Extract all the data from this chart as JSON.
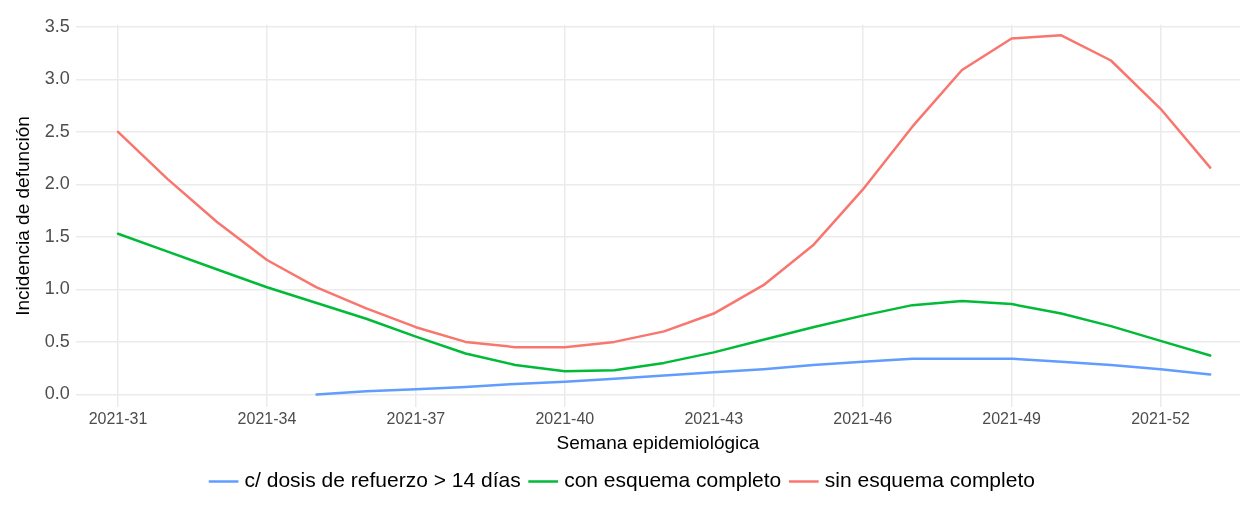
{
  "chart_data": {
    "type": "line",
    "xlabel": "Semana epidemiológica",
    "ylabel": "Incidencia de defunción",
    "categories": [
      "2021-31",
      null,
      null,
      "2021-34",
      null,
      null,
      "2021-37",
      null,
      null,
      "2021-40",
      null,
      null,
      "2021-43",
      null,
      null,
      "2021-46",
      null,
      null,
      "2021-49",
      null,
      null,
      "2021-52",
      null
    ],
    "ylim": [
      -0.12,
      3.52
    ],
    "yticks": [
      {
        "value": 0,
        "label": "0.0"
      },
      {
        "value": 0.5,
        "label": "0.5"
      },
      {
        "value": 1,
        "label": "1.0"
      },
      {
        "value": 1.5,
        "label": "1.5"
      },
      {
        "value": 2,
        "label": "2.0"
      },
      {
        "value": 2.5,
        "label": "2.5"
      },
      {
        "value": 3,
        "label": "3.0"
      },
      {
        "value": 3.5,
        "label": "3.5"
      }
    ],
    "series": [
      {
        "name": "c/ dosis de refuerzo > 14 días",
        "color": "#619cff",
        "values": [
          null,
          null,
          null,
          null,
          0.0,
          0.03,
          0.05,
          0.07,
          0.1,
          0.12,
          0.15,
          0.18,
          0.21,
          0.24,
          0.28,
          0.31,
          0.34,
          0.34,
          0.34,
          0.31,
          0.28,
          0.24,
          0.19
        ]
      },
      {
        "name": "con esquema completo",
        "color": "#00ba38",
        "values": [
          1.53,
          1.36,
          1.19,
          1.02,
          0.87,
          0.72,
          0.55,
          0.39,
          0.28,
          0.22,
          0.23,
          0.3,
          0.4,
          0.52,
          0.64,
          0.75,
          0.85,
          0.89,
          0.86,
          0.77,
          0.65,
          0.51,
          0.37
        ]
      },
      {
        "name": "sin esquema completo",
        "color": "#f8766d",
        "values": [
          2.5,
          2.05,
          1.64,
          1.28,
          1.02,
          0.82,
          0.64,
          0.5,
          0.45,
          0.45,
          0.5,
          0.6,
          0.77,
          1.04,
          1.42,
          1.95,
          2.55,
          3.09,
          3.39,
          3.42,
          3.18,
          2.72,
          2.16
        ]
      }
    ],
    "grid": true,
    "legend": "bottom",
    "marker": "none",
    "line_style": "solid"
  }
}
